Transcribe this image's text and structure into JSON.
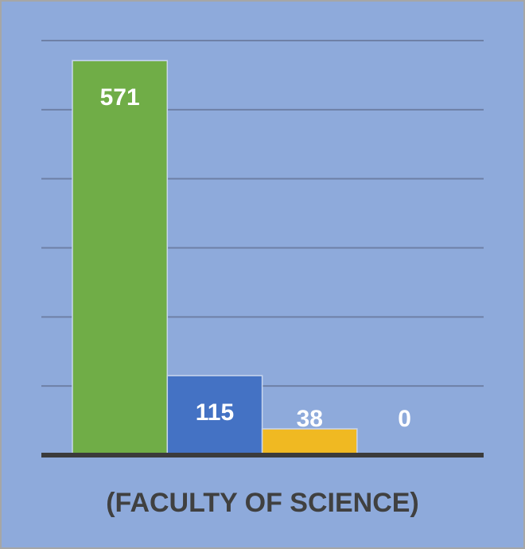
{
  "chart_data": {
    "type": "bar",
    "xlabel": "(FACULTY OF SCIENCE)",
    "categories": [
      null,
      null,
      null,
      null
    ],
    "values": [
      571,
      115,
      38,
      0
    ],
    "colors": [
      "#70ad47",
      "#4472c4",
      "#f0b922",
      null
    ],
    "ylim": [
      0,
      600
    ],
    "yticks": [
      0,
      100,
      200,
      300,
      400,
      500,
      600
    ],
    "grid": true,
    "tick_labels": false
  }
}
